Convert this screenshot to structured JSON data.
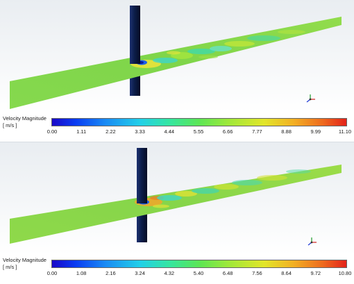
{
  "panels": [
    {
      "colorbar": {
        "title": "Velocity Magnitude",
        "unit": "[ m/s ]",
        "ticks": [
          "0.00",
          "1.11",
          "2.22",
          "3.33",
          "4.44",
          "5.55",
          "6.66",
          "7.77",
          "8.88",
          "9.99",
          "11.10"
        ],
        "min": 0.0,
        "max": 11.1
      }
    },
    {
      "colorbar": {
        "title": "Velocity Magnitude",
        "unit": "[ m/s ]",
        "ticks": [
          "0.00",
          "1.08",
          "2.16",
          "3.24",
          "4.32",
          "5.40",
          "6.48",
          "7.56",
          "8.64",
          "9.72",
          "10.80"
        ],
        "min": 0.0,
        "max": 10.8
      }
    }
  ],
  "colors": {
    "low": "#1a08c8",
    "mid": "#5ce655",
    "high": "#e3231a",
    "cylinder": "#0c1d4a",
    "plane": "#7fd64a"
  }
}
